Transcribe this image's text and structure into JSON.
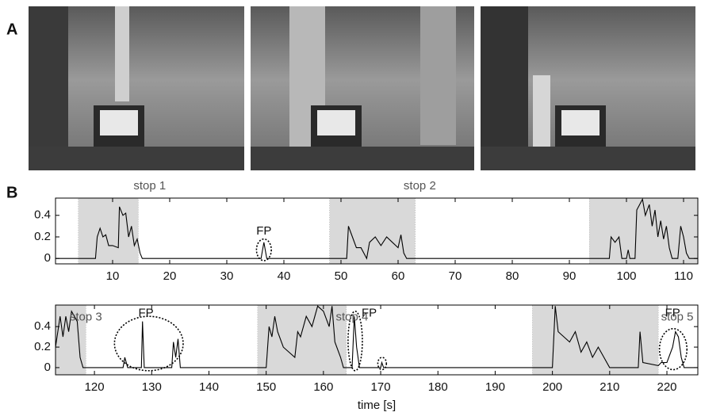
{
  "panel_labels": [
    "A",
    "B"
  ],
  "chart_data": [
    {
      "type": "line",
      "xlim": [
        0,
        112.5
      ],
      "ylim": [
        -0.05,
        0.56
      ],
      "xticks": [
        10,
        20,
        30,
        40,
        50,
        60,
        70,
        80,
        90,
        100,
        110
      ],
      "yticks": [
        0,
        0.2,
        0.4
      ],
      "shade_color": "#d9d9d9",
      "shaded_regions": [
        [
          4,
          14.5
        ],
        [
          48,
          63
        ],
        [
          93.5,
          112.5
        ]
      ],
      "x": [
        0,
        7,
        7.3,
        7.8,
        8.3,
        8.8,
        9.3,
        10,
        11,
        11.2,
        11.8,
        12.3,
        12.8,
        13.3,
        13.8,
        14.3,
        14.8,
        15.2,
        36,
        36.5,
        37,
        51,
        51.3,
        52,
        52.7,
        53.5,
        54.5,
        55,
        56,
        57,
        58,
        59,
        60,
        60.5,
        61,
        61.5,
        97,
        97.3,
        98,
        98.7,
        99.2,
        100,
        100.3,
        100.6,
        101.5,
        101.8,
        102.3,
        102.8,
        103.3,
        104,
        104.5,
        105,
        105.5,
        106,
        106.5,
        107,
        107.5,
        108,
        109,
        109.5,
        110,
        110.5,
        111,
        112.5
      ],
      "series": [
        {
          "color": "#000000",
          "values": [
            0,
            0,
            0.2,
            0.28,
            0.2,
            0.22,
            0.12,
            0.12,
            0.1,
            0.48,
            0.4,
            0.42,
            0.2,
            0.3,
            0.12,
            0.18,
            0.05,
            0,
            0,
            0.15,
            0,
            0,
            0.3,
            0.2,
            0.1,
            0.1,
            0,
            0.15,
            0.2,
            0.12,
            0.2,
            0.15,
            0.1,
            0.22,
            0.05,
            0,
            0,
            0.2,
            0.15,
            0.2,
            0,
            0,
            0.08,
            0,
            0,
            0.45,
            0.5,
            0.55,
            0.4,
            0.5,
            0.3,
            0.45,
            0.2,
            0.35,
            0.18,
            0.3,
            0.1,
            0,
            0,
            0.3,
            0.2,
            0.05,
            0,
            0
          ]
        }
      ],
      "annotations": [
        {
          "text": "stop 1",
          "x": 16.5,
          "y": 0.67
        },
        {
          "text": "stop 2",
          "x": 63.8,
          "y": 0.67
        },
        {
          "text": "FP",
          "x": 36.5,
          "y": 0.25
        }
      ],
      "ellipses": [
        {
          "xrange": [
            35.2,
            37.8
          ],
          "yrange": [
            -0.02,
            0.18
          ]
        }
      ]
    },
    {
      "type": "line",
      "xlim": [
        113.2,
        225.4
      ],
      "ylim": [
        -0.07,
        0.61
      ],
      "xticks": [
        120,
        130,
        140,
        150,
        160,
        170,
        180,
        190,
        200,
        210,
        220
      ],
      "yticks": [
        0,
        0.2,
        0.4
      ],
      "xlabel": "time [s]",
      "shade_color": "#d9d9d9",
      "shaded_regions": [
        [
          113.2,
          118.5
        ],
        [
          148.5,
          164
        ],
        [
          196.5,
          218.5
        ]
      ],
      "x": [
        113.2,
        114,
        114.5,
        115,
        115.5,
        116,
        117,
        117.5,
        118,
        125,
        125.3,
        125.8,
        128.2,
        128.4,
        128.7,
        133.5,
        133.8,
        134.2,
        134.6,
        135,
        150,
        150.5,
        151,
        151.5,
        152,
        153,
        154,
        155,
        155.5,
        156,
        157,
        158,
        159,
        160,
        161,
        161.5,
        162,
        163,
        163.5,
        165,
        165.4,
        165.8,
        166.3,
        170,
        170.2,
        170.5,
        200,
        200.5,
        201,
        202,
        203,
        204,
        205,
        206,
        207,
        208,
        209,
        210,
        215,
        215.3,
        215.8,
        218.5,
        219,
        220,
        221,
        221.5,
        222,
        222.5,
        223,
        225.4
      ],
      "series": [
        {
          "color": "#000000",
          "values": [
            0.2,
            0.5,
            0.3,
            0.5,
            0.35,
            0.55,
            0.45,
            0.1,
            0,
            0,
            0.1,
            0,
            0,
            0.45,
            0,
            0,
            0.25,
            0.1,
            0.28,
            0,
            0,
            0.4,
            0.3,
            0.5,
            0.35,
            0.2,
            0.15,
            0.1,
            0.35,
            0.3,
            0.5,
            0.4,
            0.6,
            0.55,
            0.4,
            0.6,
            0.25,
            0.1,
            0,
            0,
            0.5,
            0.2,
            0,
            0,
            0.05,
            0,
            0,
            0.6,
            0.35,
            0.3,
            0.25,
            0.35,
            0.15,
            0.25,
            0.1,
            0.2,
            0.1,
            0,
            0,
            0.35,
            0.05,
            0.02,
            0.05,
            0.05,
            0.2,
            0.35,
            0.3,
            0.1,
            0,
            0
          ]
        }
      ],
      "annotations": [
        {
          "text": "stop 3",
          "x": 118.5,
          "y": 0.49
        },
        {
          "text": "stop 4",
          "x": 165,
          "y": 0.49
        },
        {
          "text": "stop 5",
          "x": 221.8,
          "y": 0.49
        },
        {
          "text": "FP",
          "x": 129,
          "y": 0.53
        },
        {
          "text": "FP",
          "x": 168,
          "y": 0.53
        },
        {
          "text": "FP",
          "x": 221,
          "y": 0.53
        }
      ],
      "ellipses": [
        {
          "xrange": [
            123.5,
            135.5
          ],
          "yrange": [
            -0.03,
            0.5
          ]
        },
        {
          "xrange": [
            164.3,
            166.8
          ],
          "yrange": [
            -0.03,
            0.55
          ]
        },
        {
          "xrange": [
            169.5,
            171
          ],
          "yrange": [
            -0.02,
            0.1
          ]
        },
        {
          "xrange": [
            218.7,
            223.5
          ],
          "yrange": [
            -0.02,
            0.38
          ]
        }
      ]
    }
  ]
}
